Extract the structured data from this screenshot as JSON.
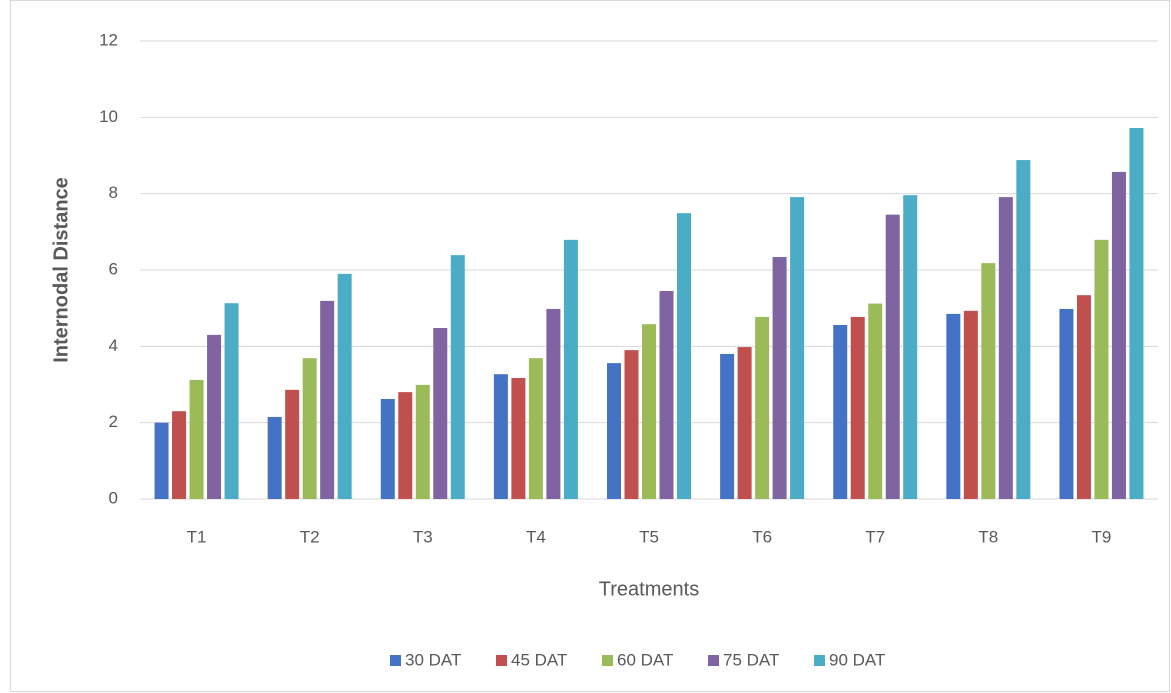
{
  "chart_data": {
    "type": "bar",
    "x_label": "Treatments",
    "y_label": "Internodal Distance",
    "categories": [
      "T1",
      "T2",
      "T3",
      "T4",
      "T5",
      "T6",
      "T7",
      "T8",
      "T9"
    ],
    "series": [
      {
        "name": "30 DAT",
        "color": "#4472c4",
        "values": [
          2.0,
          2.15,
          2.62,
          3.27,
          3.56,
          3.8,
          4.56,
          4.85,
          4.98
        ]
      },
      {
        "name": "45 DAT",
        "color": "#c0504d",
        "values": [
          2.3,
          2.86,
          2.8,
          3.17,
          3.9,
          3.98,
          4.77,
          4.93,
          5.34
        ]
      },
      {
        "name": "60 DAT",
        "color": "#9bbb59",
        "values": [
          3.12,
          3.69,
          2.99,
          3.69,
          4.58,
          4.77,
          5.12,
          6.18,
          6.79
        ]
      },
      {
        "name": "75 DAT",
        "color": "#8064a2",
        "values": [
          4.3,
          5.19,
          4.48,
          4.98,
          5.45,
          6.34,
          7.45,
          7.91,
          8.57
        ]
      },
      {
        "name": "90 DAT",
        "color": "#4bacc6",
        "values": [
          5.13,
          5.9,
          6.39,
          6.79,
          7.49,
          7.91,
          7.96,
          8.88,
          9.72
        ]
      }
    ],
    "ylim": [
      0,
      12
    ],
    "yticks": [
      0,
      2,
      4,
      6,
      8,
      10,
      12
    ],
    "grid": true,
    "legend": "bottom"
  }
}
